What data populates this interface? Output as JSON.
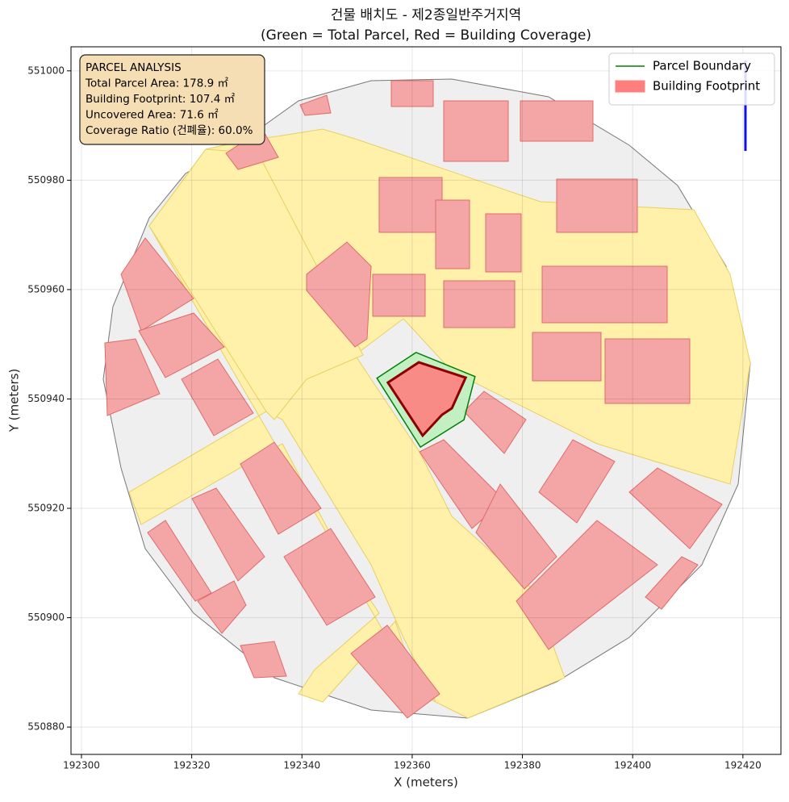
{
  "chart_data": {
    "type": "map",
    "title": [
      "건물 배치도 - 제2종일반주거지역",
      "(Green = Total Parcel, Red = Building Coverage)"
    ],
    "xlabel": "X (meters)",
    "ylabel": "Y (meters)",
    "xlim": [
      192298.1,
      192426.9
    ],
    "ylim": [
      550875.0,
      551004.4
    ],
    "xticks": [
      192300,
      192320,
      192340,
      192360,
      192380,
      192400,
      192420
    ],
    "yticks": [
      550880,
      550900,
      550920,
      550940,
      550960,
      550980,
      551000
    ],
    "grid": true,
    "legend_loc": "upper right",
    "series": [
      {
        "name": "Parcel Boundary",
        "legend_marker": "line",
        "color": "#008000",
        "fill": "#b8f0b8",
        "x": [
          192353.6,
          192360.7,
          192371.4,
          192369.4,
          192361.5
        ],
        "y": [
          550943.8,
          550948.5,
          550944.1,
          550936.2,
          550931.2
        ]
      },
      {
        "name": "Building Footprint",
        "legend_marker": "patch",
        "color": "#8b0000",
        "fill": "#ff7f7f",
        "x": [
          192355.6,
          192361.2,
          192369.7,
          192367.2,
          192365.4,
          192361.9
        ],
        "y": [
          550943.0,
          550946.7,
          550943.9,
          550938.3,
          550937.1,
          550933.3
        ]
      }
    ],
    "annotation": [
      "PARCEL ANALYSIS",
      "Total Parcel Area: 178.9 ㎡",
      "Building Footprint: 107.4 ㎡",
      "Uncovered Area: 71.6 ㎡",
      "Coverage Ratio (건폐율): 60.0%"
    ]
  }
}
